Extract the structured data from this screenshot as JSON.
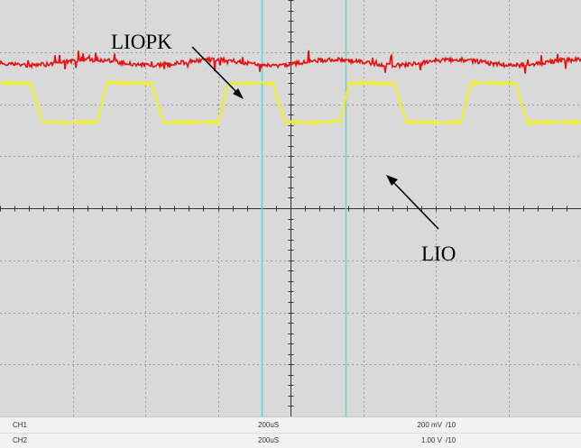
{
  "screen": {
    "background": "#d9d9d9",
    "grid_color": "#9a9a9a",
    "axis_color": "#333333",
    "cursor_color": "#5fd6d6",
    "horizontal_divisions": 8,
    "vertical_divisions": 8
  },
  "annotations": {
    "liopk_label": "LIOPK",
    "lio_label": "LIO"
  },
  "chart_data": {
    "type": "line",
    "title": "",
    "xlabel": "",
    "ylabel": "",
    "x_divisions": 8,
    "y_divisions": 8,
    "series": [
      {
        "name": "LIOPK",
        "color": "#e81010",
        "level_div": 6.8,
        "noise_div": 0.08,
        "period_div": 1.67
      },
      {
        "name": "LIO",
        "color": "#f0f020",
        "high_level_div": 6.4,
        "low_level_div": 5.65,
        "period_div": 1.67
      }
    ],
    "cursors": [
      {
        "name": "cursor-1",
        "x_div": 3.6
      },
      {
        "name": "cursor-2",
        "x_div": 4.76
      }
    ]
  },
  "status_bar": {
    "rows": [
      {
        "channel": "CH1",
        "timebase": "200uS",
        "volts_div": "200 mV",
        "probe": "/10"
      },
      {
        "channel": "CH2",
        "timebase": "200uS",
        "volts_div": "1.00 V",
        "probe": "/10"
      }
    ]
  }
}
